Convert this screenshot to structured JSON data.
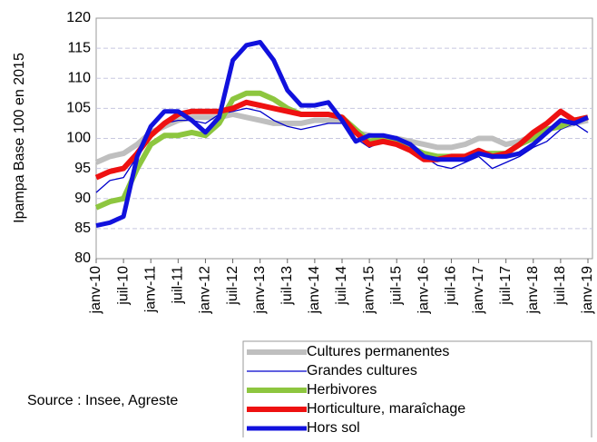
{
  "chart_data": {
    "type": "line",
    "ylabel": "Ipampa  Base 100 en  2015",
    "source": "Source : Insee, Agreste",
    "categories": [
      "janv-10",
      null,
      "juil-10",
      null,
      "janv-11",
      null,
      "juil-11",
      null,
      "janv-12",
      null,
      "juil-12",
      null,
      "janv-13",
      null,
      "juil-13",
      null,
      "janv-14",
      null,
      "juil-14",
      null,
      "janv-15",
      null,
      "juil-15",
      null,
      "janv-16",
      null,
      "juil-16",
      null,
      "janv-17",
      null,
      "juil-17",
      null,
      "janv-18",
      null,
      "juil-18",
      null,
      "janv-19"
    ],
    "ylim": [
      80,
      120
    ],
    "yticks": [
      80,
      85,
      90,
      95,
      100,
      105,
      110,
      115,
      120
    ],
    "grid": true,
    "series": [
      {
        "name": "Cultures permanentes",
        "color": "#bfbfbf",
        "width": 6,
        "values": [
          96,
          97,
          97.5,
          99,
          101,
          102,
          103,
          103.5,
          103.5,
          103.5,
          104,
          103.5,
          103,
          102.5,
          102.5,
          102.5,
          103,
          103,
          103,
          101,
          100.5,
          100,
          100,
          99.5,
          99,
          98.5,
          98.5,
          99,
          100,
          100,
          99,
          99.5,
          100.5,
          101.5,
          102,
          102.5,
          103
        ]
      },
      {
        "name": "Grandes cultures",
        "color": "#0000cc",
        "width": 1.3,
        "values": [
          91,
          93,
          93.5,
          97,
          100,
          102.5,
          103,
          103,
          102.5,
          104,
          104.5,
          105,
          104.5,
          103,
          102,
          101.5,
          102,
          102.5,
          102.5,
          100,
          98.5,
          99.5,
          99,
          98,
          97,
          95.5,
          95,
          96,
          97,
          95,
          96,
          97,
          98.5,
          99.5,
          101.5,
          102.5,
          101
        ]
      },
      {
        "name": "Herbivores",
        "color": "#8dc63f",
        "width": 6,
        "values": [
          88.5,
          89.5,
          90,
          95,
          99,
          100.5,
          100.5,
          101,
          100.5,
          102.5,
          106.5,
          107.5,
          107.5,
          106.5,
          105,
          104,
          104,
          104,
          103.5,
          101.5,
          99.5,
          100,
          99.5,
          98.5,
          97.5,
          97,
          97,
          97,
          97.5,
          97.5,
          97.5,
          99,
          100,
          101.5,
          102,
          103,
          103.5
        ]
      },
      {
        "name": "Horticulture, maraîchage",
        "color": "#ee1111",
        "width": 6,
        "values": [
          93.5,
          94.5,
          95,
          97.5,
          100.5,
          102.5,
          104,
          104.5,
          104.5,
          104.5,
          105,
          106,
          105.5,
          105,
          104.5,
          104,
          104,
          104,
          103.5,
          101,
          99,
          99.5,
          99,
          98,
          96.5,
          96.5,
          97,
          97,
          98,
          97,
          97.5,
          99,
          101,
          102.5,
          104.5,
          103,
          103.5
        ]
      },
      {
        "name": "Hors sol",
        "color": "#1111dd",
        "width": 5,
        "values": [
          85.5,
          86,
          87,
          97,
          102,
          104.5,
          104.5,
          103,
          101,
          103.5,
          113,
          115.5,
          116,
          113,
          108,
          105.5,
          105.5,
          106,
          103,
          99.5,
          100.5,
          100.5,
          100,
          99,
          97,
          96.5,
          96.5,
          96.5,
          97.5,
          97,
          97,
          97.5,
          99,
          101,
          103,
          102.5,
          103.5
        ]
      }
    ]
  }
}
